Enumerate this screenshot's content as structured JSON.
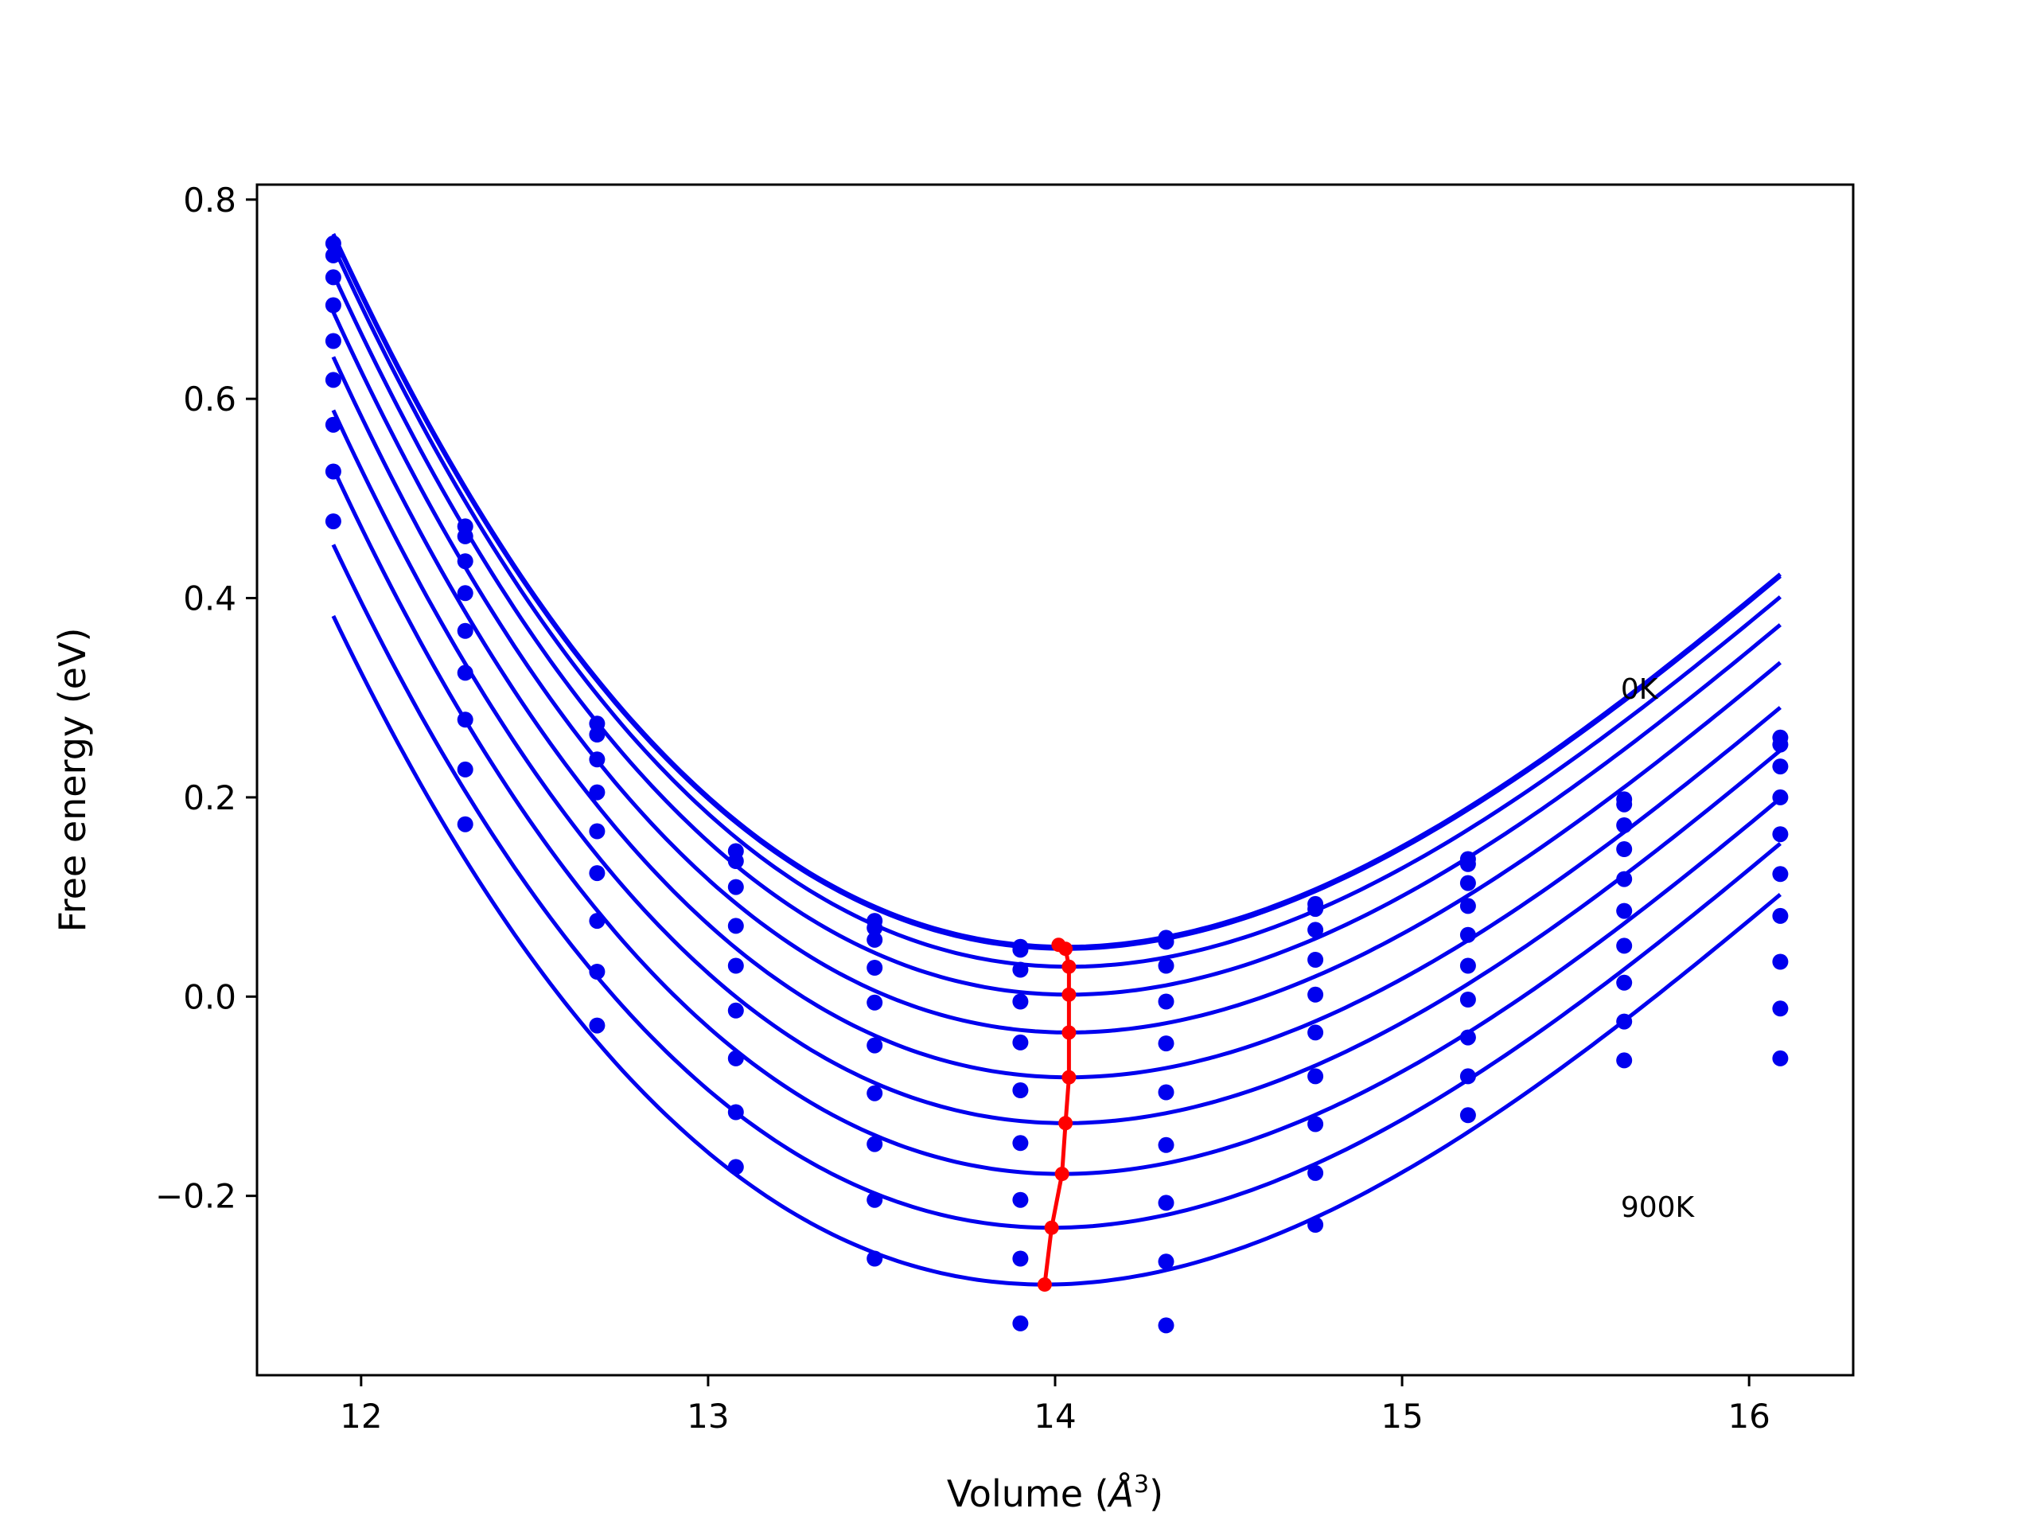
{
  "chart_data": {
    "type": "scatter",
    "title": "",
    "xlabel_main": "Volume (",
    "xlabel_unit": "Å",
    "xlabel_exp": "3",
    "xlabel_close": ")",
    "ylabel": "Free energy (eV)",
    "xlim": [
      11.7,
      16.3
    ],
    "ylim": [
      -0.38,
      0.815
    ],
    "xticks": [
      12,
      13,
      14,
      15,
      16
    ],
    "xtick_labels": [
      "12",
      "13",
      "14",
      "15",
      "16"
    ],
    "yticks": [
      -0.2,
      0.0,
      0.2,
      0.4,
      0.6,
      0.8
    ],
    "ytick_labels": [
      "−0.2",
      "0.0",
      "0.2",
      "0.4",
      "0.6",
      "0.8"
    ],
    "grid": false,
    "colors": {
      "curves": "#0000ee",
      "points": "#0000ee",
      "minimum_line": "#ff0000"
    },
    "annotations": [
      {
        "text": "0K",
        "x": 15.63,
        "y": 0.31
      },
      {
        "text": "900K",
        "x": 15.63,
        "y": -0.21
      }
    ],
    "volumes": [
      11.92,
      12.3,
      12.68,
      13.08,
      13.48,
      13.9,
      14.32,
      14.75,
      15.19,
      15.64,
      16.09
    ],
    "temperature_series": [
      {
        "fit": {
          "v0": 14.03,
          "f0": 0.05,
          "a": 0.124,
          "b": -0.0174
        },
        "points": [
          0.756,
          0.472,
          0.274,
          0.146,
          0.076,
          0.05,
          0.059,
          0.093,
          0.138,
          0.198,
          0.26
        ]
      },
      {
        "fit": {
          "v0": 14.03,
          "f0": 0.048,
          "a": 0.124,
          "b": -0.0174
        },
        "points": [
          0.744,
          0.462,
          0.263,
          0.136,
          0.069,
          0.047,
          0.055,
          0.088,
          0.133,
          0.193,
          0.253
        ]
      },
      {
        "fit": {
          "v0": 14.04,
          "f0": 0.03,
          "a": 0.124,
          "b": -0.0174
        },
        "points": [
          0.722,
          0.437,
          0.238,
          0.11,
          0.057,
          0.027,
          0.031,
          0.067,
          0.114,
          0.172,
          0.231
        ]
      },
      {
        "fit": {
          "v0": 14.04,
          "f0": 0.002,
          "a": 0.124,
          "b": -0.0174
        },
        "points": [
          0.694,
          0.405,
          0.205,
          0.071,
          0.029,
          -0.005,
          -0.005,
          0.037,
          0.091,
          0.148,
          0.2
        ]
      },
      {
        "fit": {
          "v0": 14.04,
          "f0": -0.036,
          "a": 0.124,
          "b": -0.0174
        },
        "points": [
          0.658,
          0.367,
          0.166,
          0.031,
          -0.006,
          -0.046,
          -0.047,
          0.002,
          0.062,
          0.118,
          0.163
        ]
      },
      {
        "fit": {
          "v0": 14.04,
          "f0": -0.081,
          "a": 0.124,
          "b": -0.0174
        },
        "points": [
          0.619,
          0.325,
          0.124,
          -0.014,
          -0.049,
          -0.094,
          -0.096,
          -0.036,
          0.031,
          0.086,
          0.123
        ]
      },
      {
        "fit": {
          "v0": 14.03,
          "f0": -0.127,
          "a": 0.124,
          "b": -0.0174
        },
        "points": [
          0.574,
          0.278,
          0.076,
          -0.062,
          -0.097,
          -0.147,
          -0.149,
          -0.08,
          -0.003,
          0.051,
          0.081
        ]
      },
      {
        "fit": {
          "v0": 14.02,
          "f0": -0.178,
          "a": 0.124,
          "b": -0.0174
        },
        "points": [
          0.527,
          0.228,
          0.025,
          -0.116,
          -0.148,
          -0.204,
          -0.207,
          -0.128,
          -0.041,
          0.014,
          0.035
        ]
      },
      {
        "fit": {
          "v0": 13.99,
          "f0": -0.232,
          "a": 0.124,
          "b": -0.0174
        },
        "points": [
          0.477,
          0.173,
          -0.029,
          -0.171,
          -0.204,
          -0.263,
          -0.266,
          -0.177,
          -0.08,
          -0.025,
          -0.012
        ]
      },
      {
        "fit": {
          "v0": 13.97,
          "f0": -0.289,
          "a": 0.124,
          "b": -0.0174
        },
        "points": [
          null,
          null,
          null,
          null,
          -0.263,
          -0.328,
          -0.33,
          -0.229,
          -0.119,
          -0.064,
          -0.062
        ]
      }
    ],
    "minimum_line": {
      "x": [
        14.01,
        14.03,
        14.04,
        14.04,
        14.04,
        14.04,
        14.03,
        14.02,
        13.99,
        13.97
      ],
      "y": [
        0.052,
        0.048,
        0.03,
        0.002,
        -0.036,
        -0.081,
        -0.127,
        -0.178,
        -0.232,
        -0.289
      ]
    }
  }
}
